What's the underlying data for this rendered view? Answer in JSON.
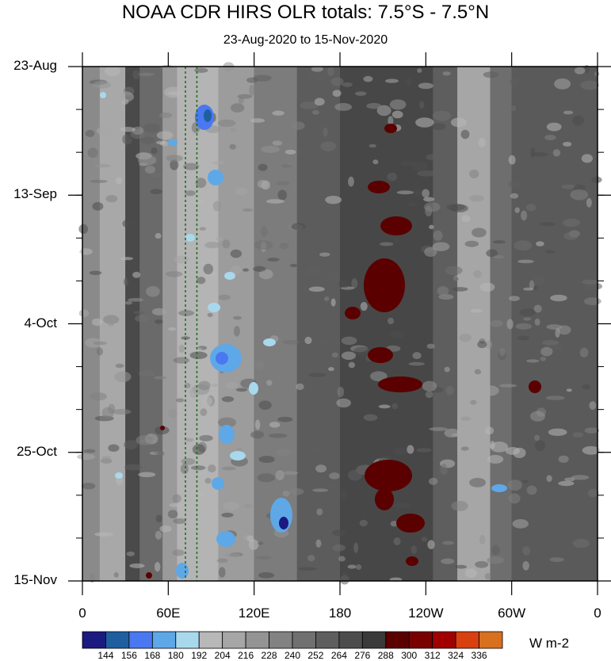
{
  "chart_data": {
    "type": "heatmap",
    "title": "NOAA CDR HIRS OLR totals: 7.5°S - 7.5°N",
    "subtitle": "23-Aug-2020 to 15-Nov-2020",
    "x_ticks": [
      "0",
      "60E",
      "120E",
      "180",
      "120W",
      "60W",
      "0"
    ],
    "y_ticks": [
      "23-Aug",
      "13-Sep",
      "4-Oct",
      "25-Oct",
      "15-Nov"
    ],
    "x_range_deg": [
      0,
      360
    ],
    "time_range": [
      "23-Aug-2020",
      "15-Nov-2020"
    ],
    "reference_lines_lon": [
      72,
      80
    ],
    "colorbar": {
      "levels": [
        "144",
        "156",
        "168",
        "180",
        "192",
        "204",
        "216",
        "228",
        "240",
        "252",
        "264",
        "276",
        "288",
        "300",
        "312",
        "324",
        "336"
      ],
      "colors": [
        "#1a1a80",
        "#1f5fa0",
        "#4a78f0",
        "#5ea8e8",
        "#a8d8ec",
        "#b8b8b8",
        "#a6a6a6",
        "#949494",
        "#828282",
        "#707070",
        "#5e5e5e",
        "#4c4c4c",
        "#3a3a3a",
        "#5a0000",
        "#7a0000",
        "#a00000",
        "#d84010",
        "#d87020"
      ],
      "units": "W m-2"
    }
  }
}
